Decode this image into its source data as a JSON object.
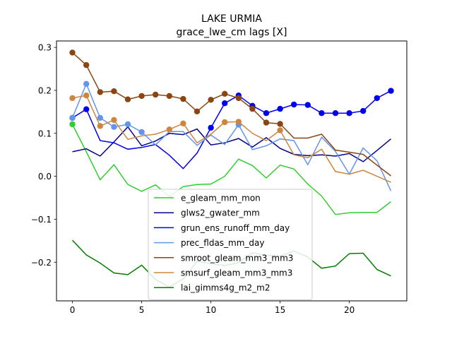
{
  "chart_data": {
    "type": "line",
    "title": "LAKE URMIA",
    "subtitle": "grace_lwe_cm lags [X]",
    "xlabel": "",
    "ylabel": "",
    "xlim": [
      -1.15,
      24.15
    ],
    "ylim": [
      -0.29,
      0.315
    ],
    "xticks": [
      0,
      5,
      10,
      15,
      20
    ],
    "yticks": [
      -0.2,
      -0.1,
      0.0,
      0.1,
      0.2,
      0.3
    ],
    "ytick_labels": [
      "−0.2",
      "−0.1",
      "0.0",
      "0.1",
      "0.2",
      "0.3"
    ],
    "legend_position": "lower center",
    "x": [
      0,
      1,
      2,
      3,
      4,
      5,
      6,
      7,
      8,
      9,
      10,
      11,
      12,
      13,
      14,
      15,
      16,
      17,
      18,
      19,
      20,
      21,
      22,
      23
    ],
    "series": [
      {
        "name": "e_gleam_mm_mon",
        "color": "#32cd32",
        "values": [
          0.121,
          0.057,
          -0.008,
          0.027,
          -0.019,
          -0.035,
          -0.02,
          -0.047,
          -0.024,
          -0.019,
          -0.018,
          0.0,
          0.04,
          0.025,
          -0.004,
          0.026,
          0.017,
          -0.018,
          -0.046,
          -0.089,
          -0.085,
          -0.084,
          -0.084,
          -0.059
        ],
        "markers": [
          0
        ]
      },
      {
        "name": "glws2_gwater_mm",
        "color": "#00008b",
        "values": [
          0.057,
          0.064,
          0.047,
          0.08,
          0.115,
          0.071,
          0.082,
          0.1,
          0.097,
          0.11,
          0.073,
          0.078,
          0.088,
          0.068,
          0.09,
          0.065,
          0.051,
          0.048,
          0.05,
          0.047,
          0.053,
          0.034,
          0.06,
          0.087
        ],
        "markers": []
      },
      {
        "name": "grun_ens_runoff_mm_day",
        "color": "#0000ee",
        "values": [
          0.136,
          0.156,
          0.083,
          0.078,
          0.063,
          0.067,
          0.074,
          0.049,
          0.018,
          0.054,
          0.113,
          0.17,
          0.188,
          0.164,
          0.147,
          0.157,
          0.167,
          0.166,
          0.147,
          0.147,
          0.147,
          0.152,
          0.182,
          0.199
        ],
        "markers": [
          0,
          1,
          10,
          11,
          12,
          13,
          14,
          15,
          16,
          17,
          18,
          19,
          20,
          21,
          22,
          23
        ]
      },
      {
        "name": "prec_fldas_mm_day",
        "color": "#6495ed",
        "values": [
          0.136,
          0.215,
          0.136,
          0.115,
          0.121,
          0.103,
          0.073,
          0.104,
          0.104,
          0.072,
          0.096,
          0.074,
          0.12,
          0.062,
          0.071,
          0.087,
          0.083,
          0.027,
          0.091,
          0.058,
          0.005,
          0.066,
          0.036,
          -0.034
        ],
        "markers": [
          0,
          1,
          2,
          3,
          4,
          5,
          12
        ]
      },
      {
        "name": "smroot_gleam_mm3_mm3",
        "color": "#8b4513",
        "values": [
          0.288,
          0.259,
          0.196,
          0.198,
          0.179,
          0.187,
          0.19,
          0.187,
          0.18,
          0.151,
          0.178,
          0.192,
          0.182,
          0.157,
          0.125,
          0.122,
          0.089,
          0.089,
          0.098,
          0.061,
          0.056,
          0.051,
          0.026,
          0.001
        ],
        "markers": [
          0,
          1,
          2,
          3,
          4,
          5,
          6,
          7,
          8,
          9,
          10,
          11,
          12,
          13,
          14,
          15
        ]
      },
      {
        "name": "smsurf_gleam_mm3_mm3",
        "color": "#cd853f",
        "values": [
          0.182,
          0.188,
          0.117,
          0.131,
          0.086,
          0.094,
          0.098,
          0.109,
          0.123,
          0.078,
          0.098,
          0.126,
          0.127,
          0.1,
          0.083,
          0.107,
          0.05,
          0.043,
          0.063,
          0.011,
          0.005,
          0.014,
          0.0,
          -0.014
        ],
        "markers": [
          0,
          1,
          2,
          3,
          7,
          8,
          11,
          12,
          15
        ]
      },
      {
        "name": "lai_gimms4g_m2_m2",
        "color": "#008000",
        "values": [
          -0.149,
          -0.183,
          -0.202,
          -0.225,
          -0.229,
          -0.207,
          -0.24,
          -0.258,
          -0.239,
          -0.198,
          -0.203,
          -0.208,
          -0.201,
          -0.178,
          -0.184,
          -0.186,
          -0.174,
          -0.188,
          -0.214,
          -0.209,
          -0.18,
          -0.179,
          -0.217,
          -0.232
        ],
        "markers": []
      }
    ]
  }
}
